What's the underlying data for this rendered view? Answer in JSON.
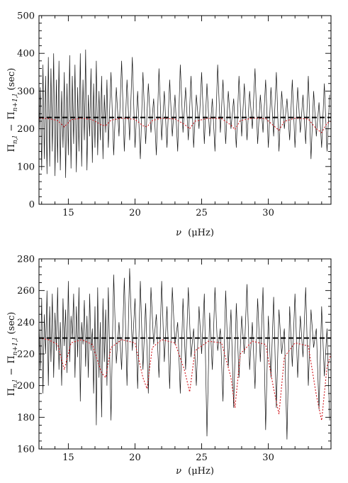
{
  "chart_data": [
    {
      "type": "line",
      "panel": "top",
      "xlabel_parts": {
        "symbol": "ν",
        "open": "(",
        "unit": "μHz",
        "close": ")"
      },
      "ylabel_parts": {
        "pi1": "Π",
        "sub1": "n,l",
        "minus": "−",
        "pi2": "Π",
        "sub2": "n+1,l",
        "unit": "(sec)"
      },
      "xlim": [
        12.8,
        34.7
      ],
      "ylim": [
        0,
        500
      ],
      "xticks": [
        15,
        20,
        25,
        30
      ],
      "yticks": [
        0,
        100,
        200,
        300,
        400,
        500
      ],
      "asymptotic_period_spacing": 230,
      "series": [
        {
          "role": "observed",
          "color": "#111111",
          "x": [
            12.8,
            12.9,
            13.0,
            13.1,
            13.2,
            13.3,
            13.4,
            13.5,
            13.6,
            13.7,
            13.8,
            13.9,
            14.0,
            14.1,
            14.2,
            14.3,
            14.4,
            14.5,
            14.6,
            14.7,
            14.8,
            14.9,
            15.0,
            15.1,
            15.2,
            15.3,
            15.4,
            15.5,
            15.6,
            15.7,
            15.8,
            15.9,
            16.0,
            16.1,
            16.2,
            16.3,
            16.4,
            16.5,
            16.6,
            16.7,
            16.8,
            16.9,
            17.0,
            17.1,
            17.2,
            17.3,
            17.4,
            17.5,
            17.6,
            17.7,
            17.8,
            17.9,
            18.0,
            18.2,
            18.4,
            18.6,
            18.8,
            19.0,
            19.2,
            19.4,
            19.6,
            19.8,
            20.0,
            20.2,
            20.4,
            20.6,
            20.8,
            21.0,
            21.2,
            21.4,
            21.6,
            21.8,
            22.0,
            22.2,
            22.4,
            22.6,
            22.8,
            23.0,
            23.2,
            23.4,
            23.6,
            23.8,
            24.0,
            24.2,
            24.4,
            24.6,
            24.8,
            25.0,
            25.2,
            25.4,
            25.6,
            25.8,
            26.0,
            26.2,
            26.4,
            26.6,
            26.8,
            27.0,
            27.2,
            27.4,
            27.6,
            27.8,
            28.0,
            28.2,
            28.4,
            28.6,
            28.8,
            29.0,
            29.2,
            29.4,
            29.6,
            29.8,
            30.0,
            30.2,
            30.4,
            30.6,
            30.8,
            31.0,
            31.2,
            31.4,
            31.6,
            31.8,
            32.0,
            32.2,
            32.4,
            32.6,
            32.8,
            33.0,
            33.2,
            33.4,
            33.6,
            33.8,
            34.0,
            34.2,
            34.4,
            34.6
          ],
          "y": [
            180,
            310,
            90,
            370,
            120,
            340,
            80,
            390,
            100,
            360,
            140,
            400,
            75,
            330,
            110,
            380,
            90,
            300,
            150,
            350,
            70,
            320,
            130,
            395,
            95,
            340,
            160,
            370,
            85,
            310,
            140,
            400,
            100,
            330,
            170,
            410,
            90,
            290,
            180,
            360,
            110,
            320,
            150,
            380,
            130,
            300,
            170,
            340,
            120,
            290,
            190,
            330,
            150,
            350,
            130,
            310,
            180,
            380,
            140,
            330,
            170,
            390,
            150,
            300,
            120,
            350,
            160,
            320,
            190,
            280,
            130,
            360,
            170,
            300,
            150,
            330,
            180,
            290,
            140,
            370,
            190,
            310,
            170,
            340,
            150,
            290,
            200,
            350,
            160,
            320,
            180,
            280,
            140,
            370,
            190,
            330,
            160,
            300,
            200,
            280,
            150,
            340,
            180,
            320,
            170,
            300,
            200,
            360,
            160,
            290,
            190,
            330,
            150,
            310,
            180,
            350,
            140,
            300,
            200,
            280,
            170,
            330,
            150,
            310,
            190,
            290,
            160,
            340,
            120,
            300,
            180,
            270,
            150,
            320,
            140,
            290
          ]
        },
        {
          "role": "model",
          "color": "#d0141a",
          "x": [
            12.8,
            13.5,
            14.2,
            14.7,
            15.2,
            16.0,
            16.8,
            17.5,
            17.8,
            18.2,
            19.0,
            20.0,
            20.6,
            20.9,
            21.3,
            22.0,
            23.0,
            23.7,
            24.1,
            24.5,
            25.5,
            26.5,
            27.2,
            27.5,
            27.9,
            28.8,
            29.8,
            30.4,
            30.8,
            31.2,
            32.0,
            33.0,
            33.6,
            34.0,
            34.4,
            34.7
          ],
          "y": [
            228,
            227,
            222,
            205,
            224,
            228,
            224,
            210,
            208,
            223,
            228,
            225,
            208,
            205,
            222,
            228,
            226,
            212,
            200,
            220,
            228,
            227,
            210,
            198,
            222,
            228,
            227,
            208,
            196,
            220,
            228,
            226,
            200,
            190,
            215,
            220
          ]
        }
      ]
    },
    {
      "type": "line",
      "panel": "bottom",
      "xlabel_parts": {
        "symbol": "ν",
        "open": "(",
        "unit": "μHz",
        "close": ")"
      },
      "ylabel_parts": {
        "pi1": "Π",
        "sub1": "n,l",
        "minus": "−",
        "pi2": "Π",
        "sub2": "n+1,l",
        "unit": "(sec)"
      },
      "xlim": [
        12.8,
        34.7
      ],
      "ylim": [
        160,
        280
      ],
      "xticks": [
        15,
        20,
        25,
        30
      ],
      "yticks": [
        160,
        180,
        200,
        220,
        240,
        260,
        280
      ],
      "asymptotic_period_spacing": 230,
      "series": [
        {
          "role": "observed",
          "color": "#111111",
          "x": [
            12.8,
            12.9,
            13.0,
            13.1,
            13.2,
            13.3,
            13.4,
            13.5,
            13.6,
            13.7,
            13.8,
            13.9,
            14.0,
            14.1,
            14.2,
            14.3,
            14.4,
            14.5,
            14.6,
            14.7,
            14.8,
            14.9,
            15.0,
            15.1,
            15.2,
            15.3,
            15.4,
            15.5,
            15.6,
            15.7,
            15.8,
            15.9,
            16.0,
            16.1,
            16.2,
            16.3,
            16.4,
            16.5,
            16.6,
            16.7,
            16.8,
            16.9,
            17.0,
            17.1,
            17.2,
            17.3,
            17.4,
            17.5,
            17.6,
            17.7,
            17.8,
            17.9,
            18.0,
            18.2,
            18.4,
            18.6,
            18.8,
            19.0,
            19.2,
            19.4,
            19.6,
            19.8,
            20.0,
            20.2,
            20.4,
            20.6,
            20.8,
            21.0,
            21.2,
            21.4,
            21.6,
            21.8,
            22.0,
            22.2,
            22.4,
            22.6,
            22.8,
            23.0,
            23.2,
            23.4,
            23.6,
            23.8,
            24.0,
            24.2,
            24.4,
            24.6,
            24.8,
            25.0,
            25.2,
            25.4,
            25.6,
            25.8,
            26.0,
            26.2,
            26.4,
            26.6,
            26.8,
            27.0,
            27.2,
            27.4,
            27.6,
            27.8,
            28.0,
            28.2,
            28.4,
            28.6,
            28.8,
            29.0,
            29.2,
            29.4,
            29.6,
            29.8,
            30.0,
            30.2,
            30.4,
            30.6,
            30.8,
            31.0,
            31.2,
            31.4,
            31.6,
            31.8,
            32.0,
            32.2,
            32.4,
            32.6,
            32.8,
            33.0,
            33.2,
            33.4,
            33.6,
            33.8,
            34.0,
            34.2,
            34.4,
            34.6
          ],
          "y": [
            240,
            210,
            255,
            195,
            245,
            220,
            260,
            200,
            250,
            215,
            258,
            205,
            246,
            222,
            262,
            210,
            240,
            200,
            255,
            225,
            248,
            208,
            266,
            215,
            244,
            230,
            258,
            205,
            250,
            218,
            262,
            190,
            240,
            226,
            254,
            212,
            244,
            205,
            258,
            222,
            236,
            195,
            250,
            175,
            262,
            205,
            240,
            180,
            255,
            215,
            248,
            200,
            262,
            178,
            270,
            214,
            240,
            210,
            268,
            200,
            274,
            222,
            255,
            198,
            266,
            210,
            252,
            195,
            262,
            226,
            245,
            205,
            266,
            215,
            250,
            198,
            262,
            226,
            240,
            195,
            255,
            210,
            262,
            218,
            236,
            200,
            250,
            220,
            258,
            168,
            246,
            210,
            262,
            222,
            236,
            190,
            260,
            212,
            248,
            186,
            252,
            205,
            244,
            220,
            264,
            210,
            240,
            198,
            255,
            215,
            262,
            172,
            244,
            205,
            256,
            186,
            248,
            220,
            236,
            166,
            250,
            212,
            258,
            205,
            244,
            218,
            262,
            200,
            248,
            224,
            236,
            185,
            250,
            206,
            236,
            178
          ]
        },
        {
          "role": "model",
          "color": "#d0141a",
          "x": [
            12.8,
            13.5,
            14.2,
            14.7,
            15.2,
            16.0,
            16.8,
            17.5,
            17.8,
            18.2,
            19.0,
            20.0,
            20.6,
            20.9,
            21.3,
            22.0,
            23.0,
            23.7,
            24.1,
            24.5,
            25.5,
            26.5,
            27.2,
            27.5,
            27.9,
            28.8,
            29.8,
            30.4,
            30.8,
            31.2,
            32.0,
            33.0,
            33.6,
            34.0,
            34.4,
            34.7
          ],
          "y": [
            230,
            229,
            226,
            210,
            227,
            229,
            226,
            208,
            205,
            224,
            229,
            227,
            205,
            198,
            224,
            229,
            227,
            210,
            196,
            222,
            228,
            227,
            205,
            186,
            220,
            228,
            226,
            198,
            182,
            218,
            227,
            225,
            194,
            178,
            212,
            220
          ]
        }
      ]
    }
  ]
}
